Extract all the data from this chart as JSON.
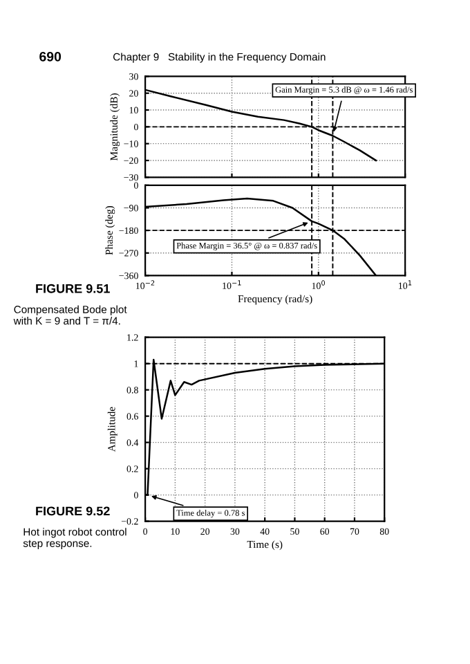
{
  "chart_data": [
    {
      "type": "line",
      "ylabel": "Magnitude (dB)",
      "log": "x",
      "tick_labels": "y",
      "grid": true,
      "marker": "none",
      "line_style": "solid",
      "annotations": [
        "690",
        "Chapter 9   Stability in the Frequency Domain",
        {
          "text": "Gain Margin = 5.3 dB @ ω = 1.46 rad/s",
          "x": 1.46,
          "y": -5.3
        }
      ],
      "xlim": [
        0.01,
        10
      ],
      "xticks": [
        {
          "value": 0.01,
          "label": null
        },
        {
          "value": 0.1,
          "label": null
        },
        {
          "value": 1,
          "label": null
        },
        {
          "value": 10,
          "label": null
        }
      ],
      "ylim": [
        -30,
        30
      ],
      "yticks": [
        {
          "value": -30,
          "label": "−30"
        },
        {
          "value": -20,
          "label": "−20"
        },
        {
          "value": -10,
          "label": "−10"
        },
        0,
        10,
        20,
        30
      ],
      "ref_lines": [
        {
          "axis": "y",
          "value": 0,
          "line_style": "dashed"
        },
        {
          "axis": "x",
          "value": 0.837,
          "line_style": "dashed"
        },
        {
          "axis": "x",
          "value": 1.46,
          "line_style": "dashed"
        }
      ],
      "series": [
        {
          "color": "#000000",
          "x": [
            0.01,
            0.02,
            0.05,
            0.1,
            0.2,
            0.4,
            0.6,
            0.837,
            1.0,
            1.46,
            2,
            3,
            4.6
          ],
          "values": [
            22,
            18,
            13,
            9,
            6,
            4,
            2,
            0,
            -2,
            -5.3,
            -9,
            -14,
            -20
          ]
        }
      ]
    },
    {
      "type": "line",
      "ylabel": "Phase (deg)",
      "xlabel": "Frequency (rad/s)",
      "log": "x",
      "grid": true,
      "marker": "none",
      "line_style": "solid",
      "annotations": [
        "FIGURE 9.51",
        "Compensated Bode plot with K = 9 and T = π/4.",
        {
          "text": "Phase Margin = 36.5° @ ω = 0.837 rad/s",
          "x": 0.837,
          "y": -143.5
        }
      ],
      "xlim": [
        0.01,
        10
      ],
      "xticks": [
        {
          "value": 0.01,
          "label": "10$^{−2}$"
        },
        {
          "value": 0.1,
          "label": "10$^{−1}$"
        },
        {
          "value": 1,
          "label": "10$^{0}$"
        },
        {
          "value": 10,
          "label": "10$^{1}$"
        }
      ],
      "ylim": [
        -360,
        0
      ],
      "yticks": [
        {
          "value": -360,
          "label": "−360"
        },
        {
          "value": -270,
          "label": "−270"
        },
        {
          "value": -180,
          "label": "−180"
        },
        {
          "value": -90,
          "label": "−90"
        },
        0
      ],
      "ref_lines": [
        {
          "axis": "y",
          "value": -180,
          "line_style": "dashed"
        },
        {
          "axis": "x",
          "value": 0.837,
          "line_style": "dashed"
        },
        {
          "axis": "x",
          "value": 1.46,
          "line_style": "dashed"
        }
      ],
      "series": [
        {
          "color": "#000000",
          "x": [
            0.01,
            0.03,
            0.08,
            0.15,
            0.3,
            0.5,
            0.837,
            1.0,
            1.46,
            2,
            3,
            4.6
          ],
          "values": [
            -86,
            -75,
            -60,
            -53,
            -62,
            -90,
            -143.5,
            -153,
            -180,
            -215,
            -280,
            -360
          ]
        }
      ]
    },
    {
      "type": "line",
      "ylabel": "Amplitude",
      "xlabel": "Time (s)",
      "grid": true,
      "marker": "none",
      "line_style": "solid",
      "annotations": [
        "FIGURE 9.52",
        "Hot ingot robot control step response.",
        {
          "text": "Time delay = 0.78 s",
          "x": 0.78,
          "y": 0
        }
      ],
      "xlim": [
        0,
        80
      ],
      "xticks": [
        0,
        10,
        20,
        30,
        40,
        50,
        60,
        70,
        80
      ],
      "ylim": [
        -0.2,
        1.2
      ],
      "yticks": [
        {
          "value": -0.2,
          "label": "−0.2"
        },
        0,
        0.2,
        0.4,
        0.6,
        0.8,
        1,
        1.2
      ],
      "ref_lines": [
        {
          "axis": "y",
          "value": 1,
          "line_style": "dashed"
        }
      ],
      "series": [
        {
          "color": "#000000",
          "x": [
            0,
            0.78,
            2.8,
            5.5,
            8.5,
            10,
            13,
            15.5,
            18,
            30,
            40,
            50,
            60,
            80
          ],
          "values": [
            0,
            0,
            1.03,
            0.58,
            0.87,
            0.76,
            0.86,
            0.84,
            0.87,
            0.93,
            0.96,
            0.98,
            0.99,
            1.0
          ]
        }
      ]
    }
  ]
}
